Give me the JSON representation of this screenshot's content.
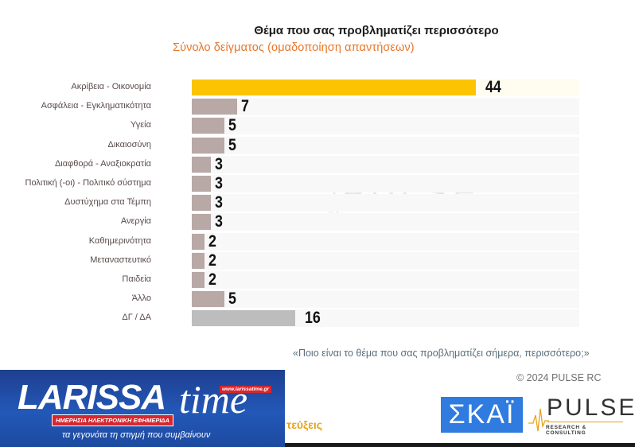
{
  "header": {
    "title": "Θέμα που σας προβληματίζει περισσότερο",
    "subtitle": "Σύνολο δείγματος (ομαδοποίηση απαντήσεων)"
  },
  "chart_data": {
    "type": "bar",
    "orientation": "horizontal",
    "title": "Θέμα που σας προβληματίζει περισσότερο",
    "subtitle": "Σύνολο δείγματος (ομαδοποίηση απαντήσεων)",
    "xlabel": "",
    "ylabel": "",
    "unit": "%",
    "categories": [
      "Ακρίβεια - Οικονομία",
      "Ασφάλεια - Εγκληματικότητα",
      "Υγεία",
      "Δικαιοσύνη",
      "Διαφθορά  - Αναξιοκρατία",
      "Πολιτική (-οι) - Πολιτικό σύστημα",
      "Δυστύχημα στα Τέμπη",
      "Ανεργία",
      "Καθημερινότητα",
      "Μεταναστευτικό",
      "Παιδεία",
      "Άλλο",
      "ΔΓ / ΔΑ"
    ],
    "values": [
      44,
      7,
      5,
      5,
      3,
      3,
      3,
      3,
      2,
      2,
      2,
      5,
      16
    ],
    "colors": {
      "highlight": "#fcc300",
      "default": "#b8a8a6",
      "dont_know": "#bdbdbd"
    },
    "grid": false,
    "legend": "none",
    "xlim": [
      0,
      60
    ]
  },
  "watermark": {
    "name": "PULSE",
    "sub": "RESEARCH & CONSULTING"
  },
  "footer": {
    "question": "«Ποιο είναι το θέμα που σας προβληματίζει σήμερα, περισσότερο;»",
    "copyright": "© 2024 PULSE RC",
    "partial_text": "τεύξεις"
  },
  "larissa_banner": {
    "brand": "LARISSA",
    "brand_time": "time",
    "url": "www.larissatime.gr",
    "tagline": "ΗΜΕΡΗΣΙΑ ΗΛΕΚΤΡΟΝΙΚΗ ΕΦΗΜΕΡΙΔΑ",
    "slogan": "τα γεγονότα τη στιγμή που συμβαίνουν"
  },
  "logos": {
    "skai": "ΣΚΑΪ",
    "pulse": "PULSE",
    "pulse_sub": "RESEARCH & CONSULTING"
  }
}
